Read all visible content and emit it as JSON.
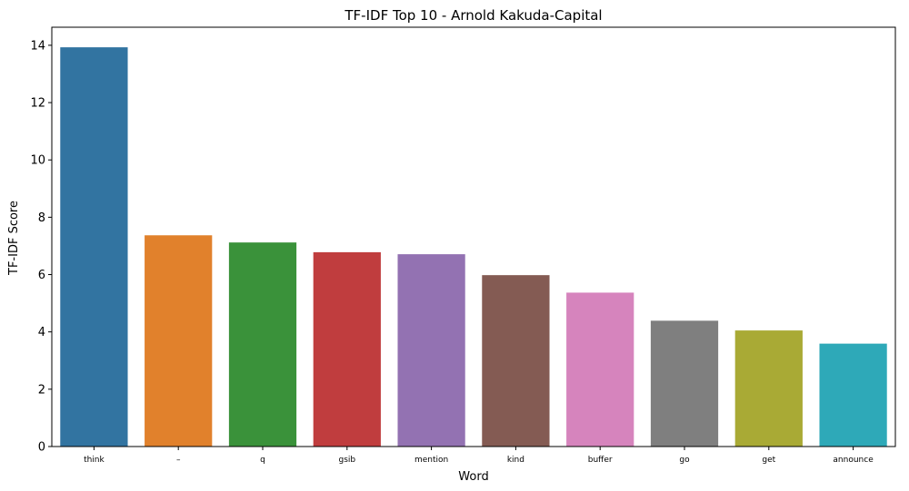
{
  "chart_data": {
    "type": "bar",
    "title": "TF-IDF Top 10 - Arnold Kakuda-Capital",
    "xlabel": "Word",
    "ylabel": "TF-IDF Score",
    "categories": [
      "think",
      "–",
      "q",
      "gsib",
      "mention",
      "kind",
      "buffer",
      "go",
      "get",
      "announce"
    ],
    "values": [
      13.93,
      7.37,
      7.12,
      6.78,
      6.71,
      5.98,
      5.37,
      4.39,
      4.05,
      3.59
    ],
    "colors": [
      "#3274a1",
      "#e1812c",
      "#3a923a",
      "#c03d3e",
      "#9372b2",
      "#845b53",
      "#d684bd",
      "#7f7f7f",
      "#a9aa35",
      "#2ea9b8"
    ],
    "yticks": [
      0,
      2,
      4,
      6,
      8,
      10,
      12,
      14
    ],
    "ylim": [
      0,
      14.63
    ],
    "grid": false,
    "legend": false
  }
}
